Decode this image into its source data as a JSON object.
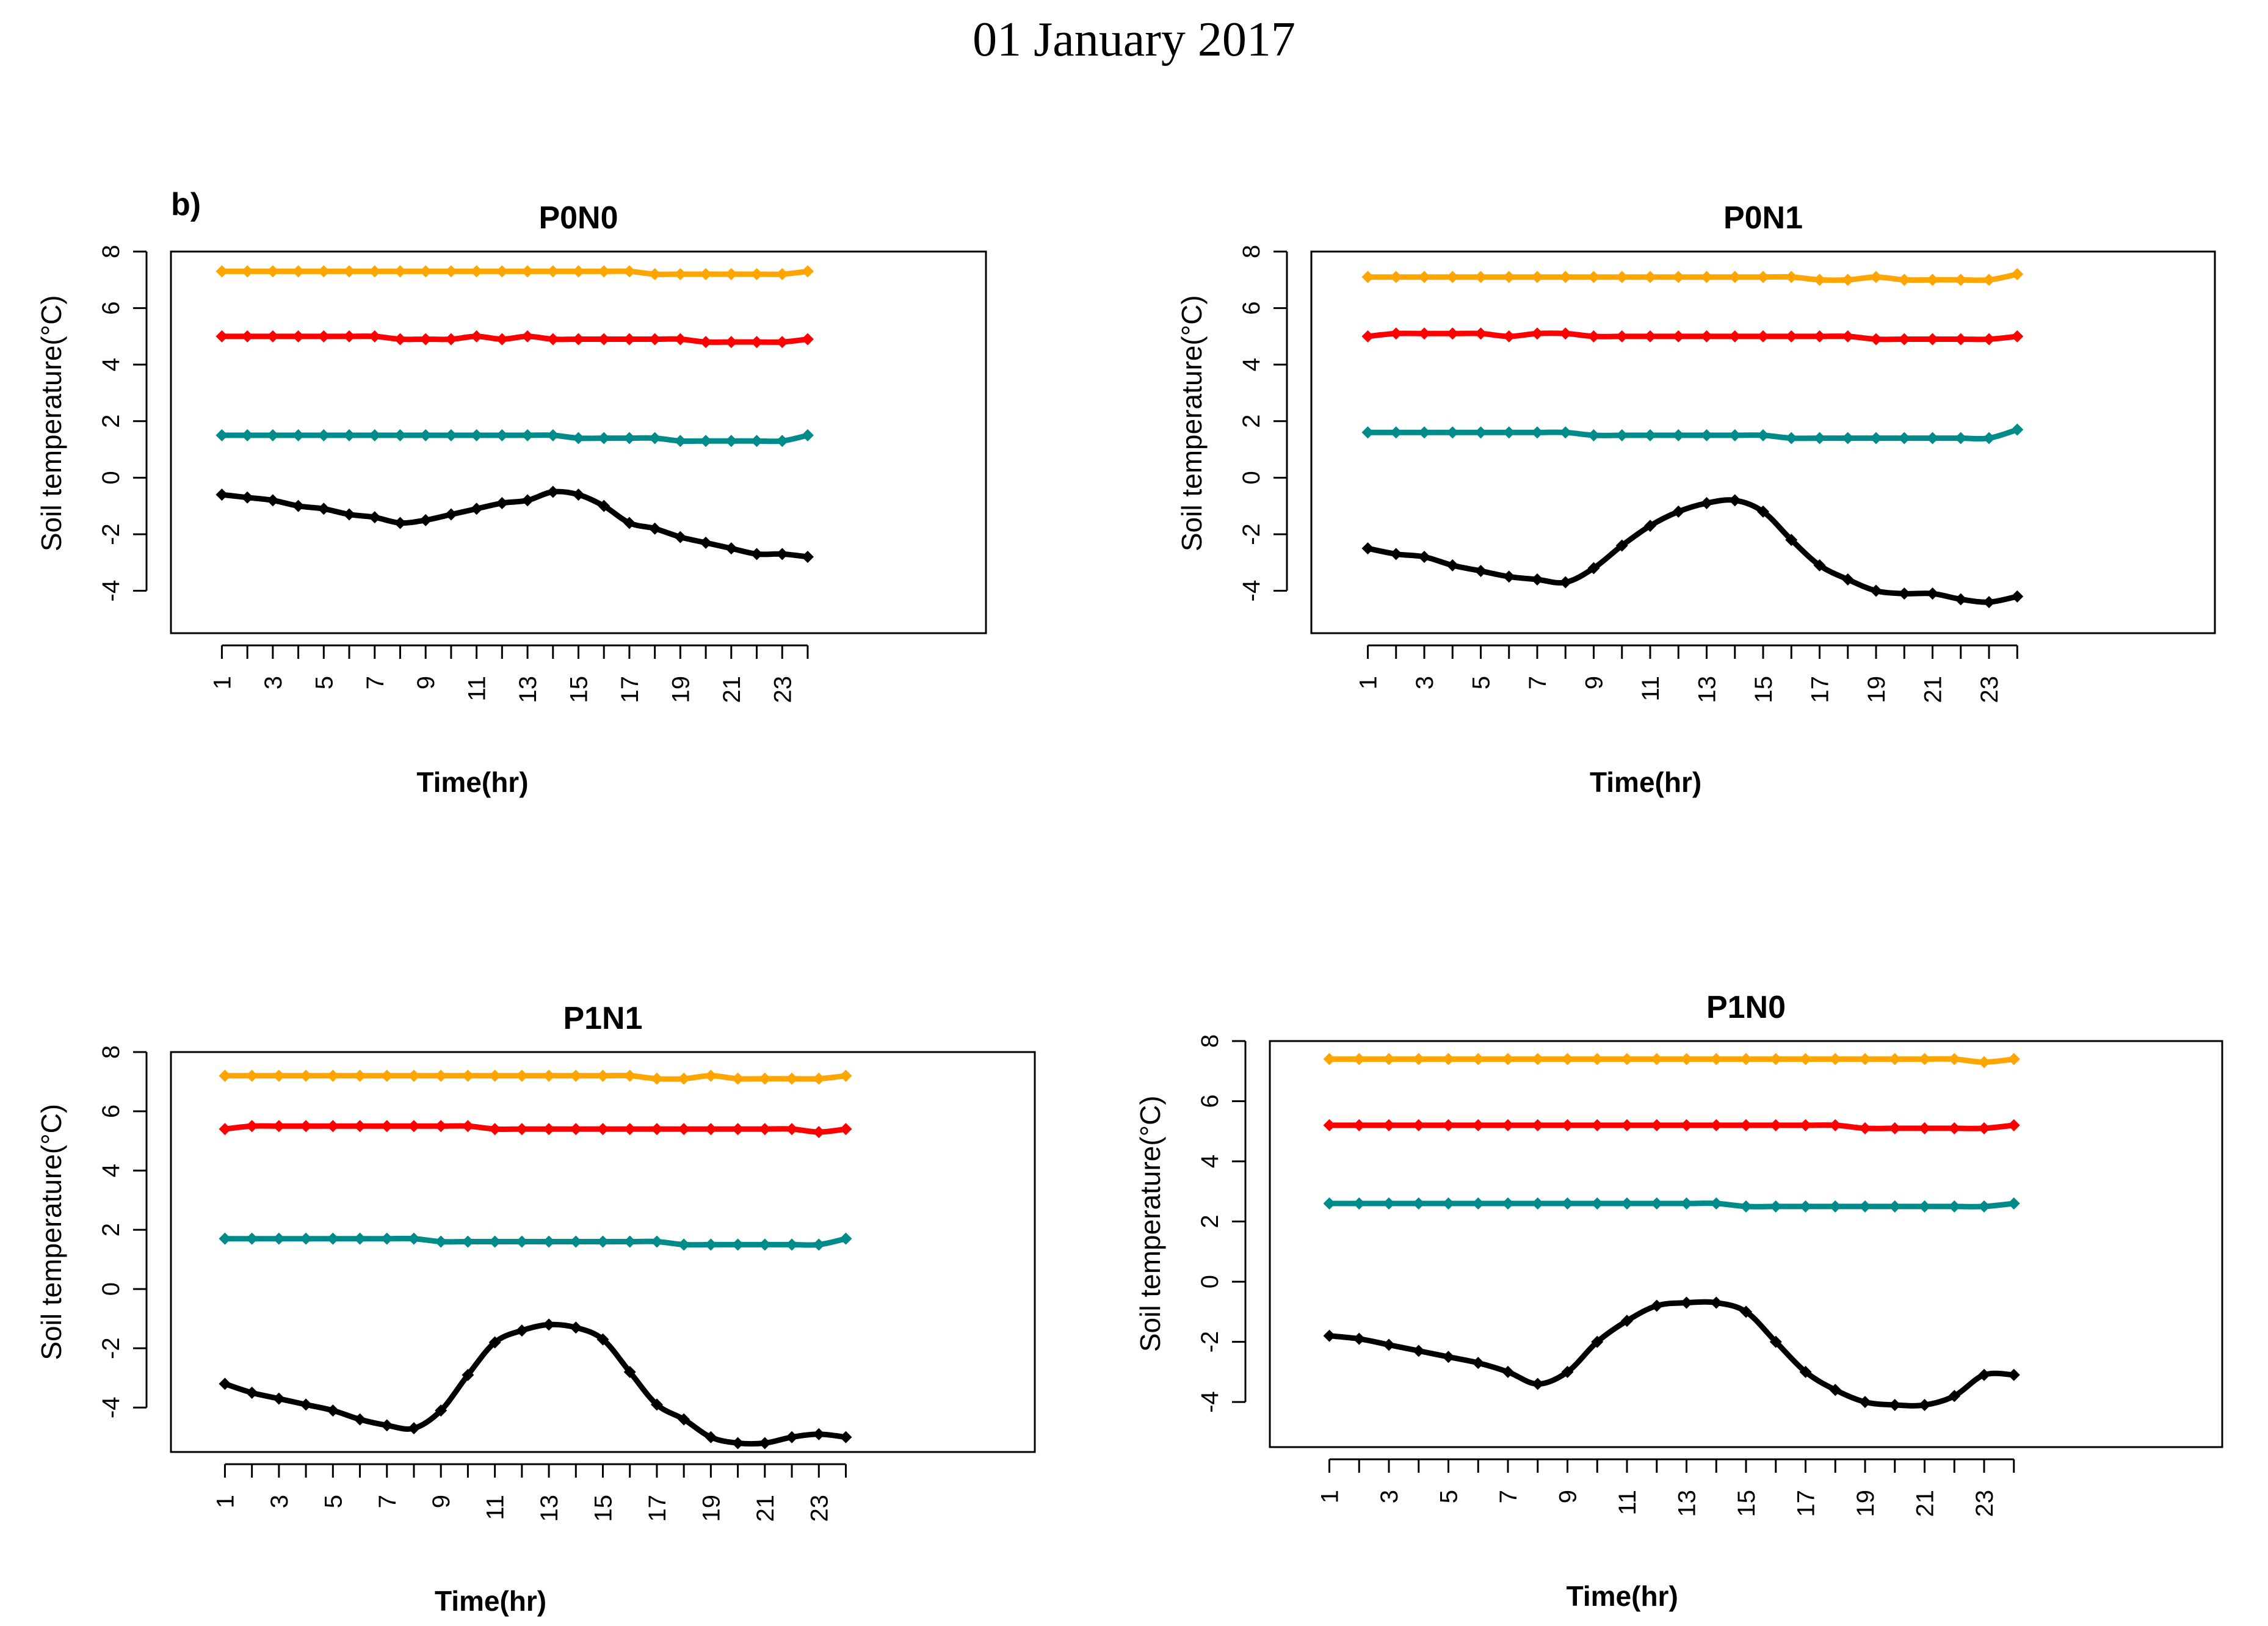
{
  "page": {
    "title": "01 January 2017",
    "panel_label": "b)"
  },
  "colors": {
    "orange": "#ffa500",
    "red": "#ff0000",
    "teal": "#008b8b",
    "black": "#000000",
    "frame": "#000000"
  },
  "chart_data": [
    {
      "type": "line",
      "title": "P0N0",
      "xlabel": "Time(hr)",
      "ylabel": "Soil temperature(°C)",
      "ylim": [
        -5.5,
        8
      ],
      "xlim": [
        -1,
        31
      ],
      "yticks": [
        8,
        6,
        4,
        2,
        0,
        -2,
        -4
      ],
      "xticks": [
        1,
        3,
        5,
        7,
        9,
        11,
        13,
        15,
        17,
        19,
        21,
        23
      ],
      "x": [
        1,
        2,
        3,
        4,
        5,
        6,
        7,
        8,
        9,
        10,
        11,
        12,
        13,
        14,
        15,
        16,
        17,
        18,
        19,
        20,
        21,
        22,
        23,
        24
      ],
      "series": [
        {
          "name": "orange",
          "color": "#ffa500",
          "values": [
            7.3,
            7.3,
            7.3,
            7.3,
            7.3,
            7.3,
            7.3,
            7.3,
            7.3,
            7.3,
            7.3,
            7.3,
            7.3,
            7.3,
            7.3,
            7.3,
            7.3,
            7.2,
            7.2,
            7.2,
            7.2,
            7.2,
            7.2,
            7.3
          ]
        },
        {
          "name": "red",
          "color": "#ff0000",
          "values": [
            5.0,
            5.0,
            5.0,
            5.0,
            5.0,
            5.0,
            5.0,
            4.9,
            4.9,
            4.9,
            5.0,
            4.9,
            5.0,
            4.9,
            4.9,
            4.9,
            4.9,
            4.9,
            4.9,
            4.8,
            4.8,
            4.8,
            4.8,
            4.9
          ]
        },
        {
          "name": "teal",
          "color": "#008b8b",
          "values": [
            1.5,
            1.5,
            1.5,
            1.5,
            1.5,
            1.5,
            1.5,
            1.5,
            1.5,
            1.5,
            1.5,
            1.5,
            1.5,
            1.5,
            1.4,
            1.4,
            1.4,
            1.4,
            1.3,
            1.3,
            1.3,
            1.3,
            1.3,
            1.5
          ]
        },
        {
          "name": "black",
          "color": "#000000",
          "values": [
            -0.6,
            -0.7,
            -0.8,
            -1.0,
            -1.1,
            -1.3,
            -1.4,
            -1.6,
            -1.5,
            -1.3,
            -1.1,
            -0.9,
            -0.8,
            -0.5,
            -0.6,
            -1.0,
            -1.6,
            -1.8,
            -2.1,
            -2.3,
            -2.5,
            -2.7,
            -2.7,
            -2.8
          ]
        }
      ]
    },
    {
      "type": "line",
      "title": "P0N1",
      "xlabel": "Time(hr)",
      "ylabel": "Soil temperature(°C)",
      "ylim": [
        -5.5,
        8
      ],
      "xlim": [
        -1,
        31
      ],
      "yticks": [
        8,
        6,
        4,
        2,
        0,
        -2,
        -4
      ],
      "xticks": [
        1,
        3,
        5,
        7,
        9,
        11,
        13,
        15,
        17,
        19,
        21,
        23
      ],
      "x": [
        1,
        2,
        3,
        4,
        5,
        6,
        7,
        8,
        9,
        10,
        11,
        12,
        13,
        14,
        15,
        16,
        17,
        18,
        19,
        20,
        21,
        22,
        23,
        24
      ],
      "series": [
        {
          "name": "orange",
          "color": "#ffa500",
          "values": [
            7.1,
            7.1,
            7.1,
            7.1,
            7.1,
            7.1,
            7.1,
            7.1,
            7.1,
            7.1,
            7.1,
            7.1,
            7.1,
            7.1,
            7.1,
            7.1,
            7.0,
            7.0,
            7.1,
            7.0,
            7.0,
            7.0,
            7.0,
            7.2
          ]
        },
        {
          "name": "red",
          "color": "#ff0000",
          "values": [
            5.0,
            5.1,
            5.1,
            5.1,
            5.1,
            5.0,
            5.1,
            5.1,
            5.0,
            5.0,
            5.0,
            5.0,
            5.0,
            5.0,
            5.0,
            5.0,
            5.0,
            5.0,
            4.9,
            4.9,
            4.9,
            4.9,
            4.9,
            5.0
          ]
        },
        {
          "name": "teal",
          "color": "#008b8b",
          "values": [
            1.6,
            1.6,
            1.6,
            1.6,
            1.6,
            1.6,
            1.6,
            1.6,
            1.5,
            1.5,
            1.5,
            1.5,
            1.5,
            1.5,
            1.5,
            1.4,
            1.4,
            1.4,
            1.4,
            1.4,
            1.4,
            1.4,
            1.4,
            1.7
          ]
        },
        {
          "name": "black",
          "color": "#000000",
          "values": [
            -2.5,
            -2.7,
            -2.8,
            -3.1,
            -3.3,
            -3.5,
            -3.6,
            -3.7,
            -3.2,
            -2.4,
            -1.7,
            -1.2,
            -0.9,
            -0.8,
            -1.2,
            -2.2,
            -3.1,
            -3.6,
            -4.0,
            -4.1,
            -4.1,
            -4.3,
            -4.4,
            -4.2
          ]
        }
      ]
    },
    {
      "type": "line",
      "title": "P1N1",
      "xlabel": "Time(hr)",
      "ylabel": "Soil temperature(°C)",
      "ylim": [
        -5.5,
        8
      ],
      "xlim": [
        -1,
        31
      ],
      "yticks": [
        8,
        6,
        4,
        2,
        0,
        -2,
        -4
      ],
      "xticks": [
        1,
        3,
        5,
        7,
        9,
        11,
        13,
        15,
        17,
        19,
        21,
        23
      ],
      "x": [
        1,
        2,
        3,
        4,
        5,
        6,
        7,
        8,
        9,
        10,
        11,
        12,
        13,
        14,
        15,
        16,
        17,
        18,
        19,
        20,
        21,
        22,
        23,
        24
      ],
      "series": [
        {
          "name": "orange",
          "color": "#ffa500",
          "values": [
            7.2,
            7.2,
            7.2,
            7.2,
            7.2,
            7.2,
            7.2,
            7.2,
            7.2,
            7.2,
            7.2,
            7.2,
            7.2,
            7.2,
            7.2,
            7.2,
            7.1,
            7.1,
            7.2,
            7.1,
            7.1,
            7.1,
            7.1,
            7.2
          ]
        },
        {
          "name": "red",
          "color": "#ff0000",
          "values": [
            5.4,
            5.5,
            5.5,
            5.5,
            5.5,
            5.5,
            5.5,
            5.5,
            5.5,
            5.5,
            5.4,
            5.4,
            5.4,
            5.4,
            5.4,
            5.4,
            5.4,
            5.4,
            5.4,
            5.4,
            5.4,
            5.4,
            5.3,
            5.4
          ]
        },
        {
          "name": "teal",
          "color": "#008b8b",
          "values": [
            1.7,
            1.7,
            1.7,
            1.7,
            1.7,
            1.7,
            1.7,
            1.7,
            1.6,
            1.6,
            1.6,
            1.6,
            1.6,
            1.6,
            1.6,
            1.6,
            1.6,
            1.5,
            1.5,
            1.5,
            1.5,
            1.5,
            1.5,
            1.7
          ]
        },
        {
          "name": "black",
          "color": "#000000",
          "values": [
            -3.2,
            -3.5,
            -3.7,
            -3.9,
            -4.1,
            -4.4,
            -4.6,
            -4.7,
            -4.1,
            -2.9,
            -1.8,
            -1.4,
            -1.2,
            -1.3,
            -1.7,
            -2.8,
            -3.9,
            -4.4,
            -5.0,
            -5.2,
            -5.2,
            -5.0,
            -4.9,
            -5.0
          ]
        }
      ]
    },
    {
      "type": "line",
      "title": "P1N0",
      "xlabel": "Time(hr)",
      "ylabel": "Soil temperature(°C)",
      "ylim": [
        -5.5,
        8
      ],
      "xlim": [
        -1,
        31
      ],
      "yticks": [
        8,
        6,
        4,
        2,
        0,
        -2,
        -4
      ],
      "xticks": [
        1,
        3,
        5,
        7,
        9,
        11,
        13,
        15,
        17,
        19,
        21,
        23
      ],
      "x": [
        1,
        2,
        3,
        4,
        5,
        6,
        7,
        8,
        9,
        10,
        11,
        12,
        13,
        14,
        15,
        16,
        17,
        18,
        19,
        20,
        21,
        22,
        23,
        24
      ],
      "series": [
        {
          "name": "orange",
          "color": "#ffa500",
          "values": [
            7.4,
            7.4,
            7.4,
            7.4,
            7.4,
            7.4,
            7.4,
            7.4,
            7.4,
            7.4,
            7.4,
            7.4,
            7.4,
            7.4,
            7.4,
            7.4,
            7.4,
            7.4,
            7.4,
            7.4,
            7.4,
            7.4,
            7.3,
            7.4
          ]
        },
        {
          "name": "red",
          "color": "#ff0000",
          "values": [
            5.2,
            5.2,
            5.2,
            5.2,
            5.2,
            5.2,
            5.2,
            5.2,
            5.2,
            5.2,
            5.2,
            5.2,
            5.2,
            5.2,
            5.2,
            5.2,
            5.2,
            5.2,
            5.1,
            5.1,
            5.1,
            5.1,
            5.1,
            5.2
          ]
        },
        {
          "name": "teal",
          "color": "#008b8b",
          "values": [
            2.6,
            2.6,
            2.6,
            2.6,
            2.6,
            2.6,
            2.6,
            2.6,
            2.6,
            2.6,
            2.6,
            2.6,
            2.6,
            2.6,
            2.5,
            2.5,
            2.5,
            2.5,
            2.5,
            2.5,
            2.5,
            2.5,
            2.5,
            2.6
          ]
        },
        {
          "name": "black",
          "color": "#000000",
          "values": [
            -1.8,
            -1.9,
            -2.1,
            -2.3,
            -2.5,
            -2.7,
            -3.0,
            -3.4,
            -3.0,
            -2.0,
            -1.3,
            -0.8,
            -0.7,
            -0.7,
            -1.0,
            -2.0,
            -3.0,
            -3.6,
            -4.0,
            -4.1,
            -4.1,
            -3.8,
            -3.1,
            -3.1
          ]
        }
      ]
    }
  ]
}
